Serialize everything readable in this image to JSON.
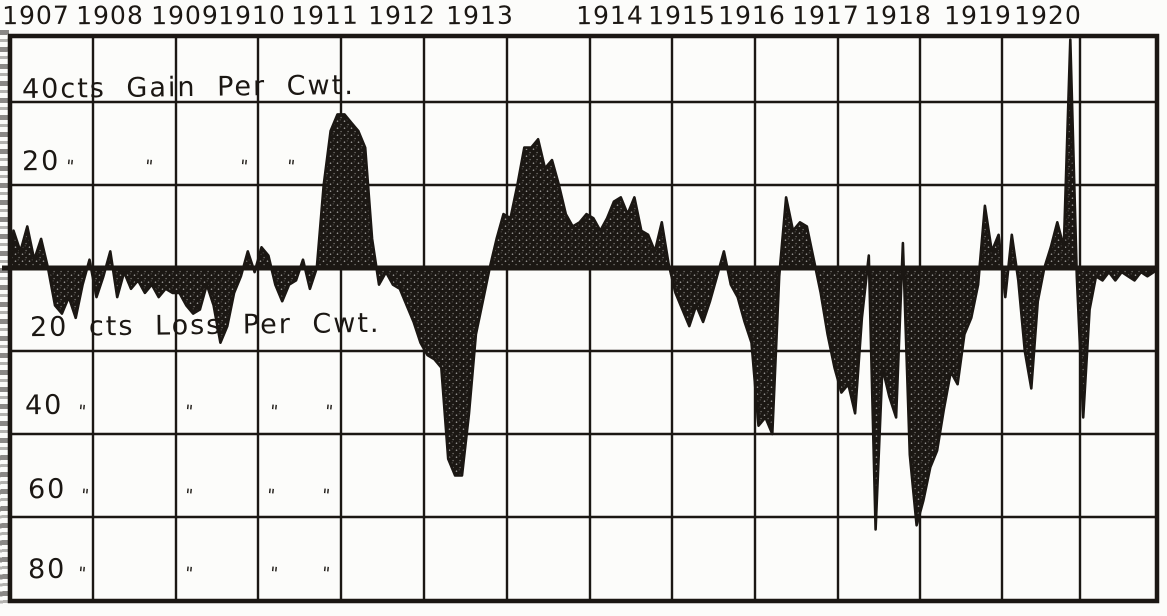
{
  "page": {
    "background_color": "#fcfcfa",
    "ink_color": "#1b1713",
    "title": ""
  },
  "chart_data": {
    "type": "area",
    "title": "",
    "unit": "cents per cwt",
    "xlabel": "",
    "ylabel": "Gain / Loss in cents per Cwt.",
    "ylim": [
      -80,
      56
    ],
    "grid": true,
    "x_tick_labels": [
      "1907",
      "1908",
      "1909",
      "1910",
      "1911",
      "1912",
      "1913",
      "1914",
      "1915",
      "1916",
      "1917",
      "1918",
      "1919",
      "1920"
    ],
    "y_gridline_values": [
      40,
      20,
      0,
      -20,
      -40,
      -60,
      -80
    ],
    "y_axis_labels": [
      {
        "value": 40,
        "text": "40cts Gain Per Cwt.",
        "ditto_marks": []
      },
      {
        "value": 20,
        "text": "20",
        "ditto_marks": [
          "\"",
          "\"",
          "\"",
          "\""
        ]
      },
      {
        "value": -20,
        "text": "20 cts Loss Per Cwt.",
        "ditto_marks": []
      },
      {
        "value": -40,
        "text": "40",
        "ditto_marks": [
          "\"",
          "\"",
          "\"",
          "\""
        ]
      },
      {
        "value": -60,
        "text": "60",
        "ditto_marks": [
          "\"",
          "\"",
          "\"",
          "\""
        ]
      },
      {
        "value": -80,
        "text": "80",
        "ditto_marks": [
          "\"",
          "\"",
          "\"",
          "\""
        ]
      }
    ],
    "series": [
      {
        "name": "monthly-gain-loss-cents-per-cwt",
        "years": [
          {
            "year": "1907",
            "monthly_values": [
              9,
              4,
              10,
              2,
              7,
              0,
              -9,
              -11,
              -7,
              -12,
              -4,
              2
            ]
          },
          {
            "year": "1908",
            "monthly_values": [
              -7,
              -2,
              4,
              -7,
              -1,
              -5,
              -3,
              -6,
              -4,
              -7,
              -5,
              -6
            ]
          },
          {
            "year": "1909",
            "monthly_values": [
              -6,
              -9,
              -11,
              -10,
              -4,
              -9,
              -18,
              -14,
              -6,
              -2,
              4,
              -1
            ]
          },
          {
            "year": "1910",
            "monthly_values": [
              5,
              3,
              -4,
              -8,
              -4,
              -3,
              2,
              -5,
              0,
              20,
              33,
              37
            ]
          },
          {
            "year": "1911",
            "monthly_values": [
              37,
              35,
              33,
              29,
              7,
              -4,
              -1,
              -4,
              -5,
              -9,
              -13,
              -18
            ]
          },
          {
            "year": "1912",
            "monthly_values": [
              -21,
              -22,
              -24,
              -46,
              -50,
              -50,
              -35,
              -16,
              -8,
              0,
              7,
              13
            ]
          },
          {
            "year": "1913",
            "monthly_values": [
              12,
              20,
              29,
              29,
              31,
              24,
              26,
              20,
              13,
              10,
              11,
              13
            ]
          },
          {
            "year": "1914",
            "monthly_values": [
              12,
              9,
              12,
              16,
              17,
              13,
              17,
              9,
              8,
              4,
              11,
              1
            ]
          },
          {
            "year": "1915",
            "monthly_values": [
              -6,
              -10,
              -14,
              -9,
              -13,
              -8,
              -2,
              4,
              -4,
              -7,
              -13,
              -18
            ]
          },
          {
            "year": "1916",
            "monthly_values": [
              -38,
              -36,
              -40,
              -2,
              17,
              9,
              11,
              10,
              2,
              -6,
              -16,
              -24
            ]
          },
          {
            "year": "1917",
            "monthly_values": [
              -30,
              -28,
              -35,
              -12,
              3,
              -63,
              -24,
              -31,
              -36,
              6,
              -45,
              -62
            ]
          },
          {
            "year": "1918",
            "monthly_values": [
              -56,
              -48,
              -44,
              -34,
              -25,
              -28,
              -16,
              -12,
              -4,
              15,
              4,
              8
            ]
          },
          {
            "year": "1919",
            "monthly_values": [
              -7,
              8,
              -3,
              -20,
              -29,
              -8,
              0,
              5,
              11,
              5,
              55,
              -2
            ]
          },
          {
            "year": "1920",
            "monthly_values": [
              -36,
              -10,
              -2,
              -3,
              -1,
              -3,
              -1,
              -2,
              -3,
              -1,
              -2,
              -1
            ]
          }
        ]
      }
    ]
  }
}
